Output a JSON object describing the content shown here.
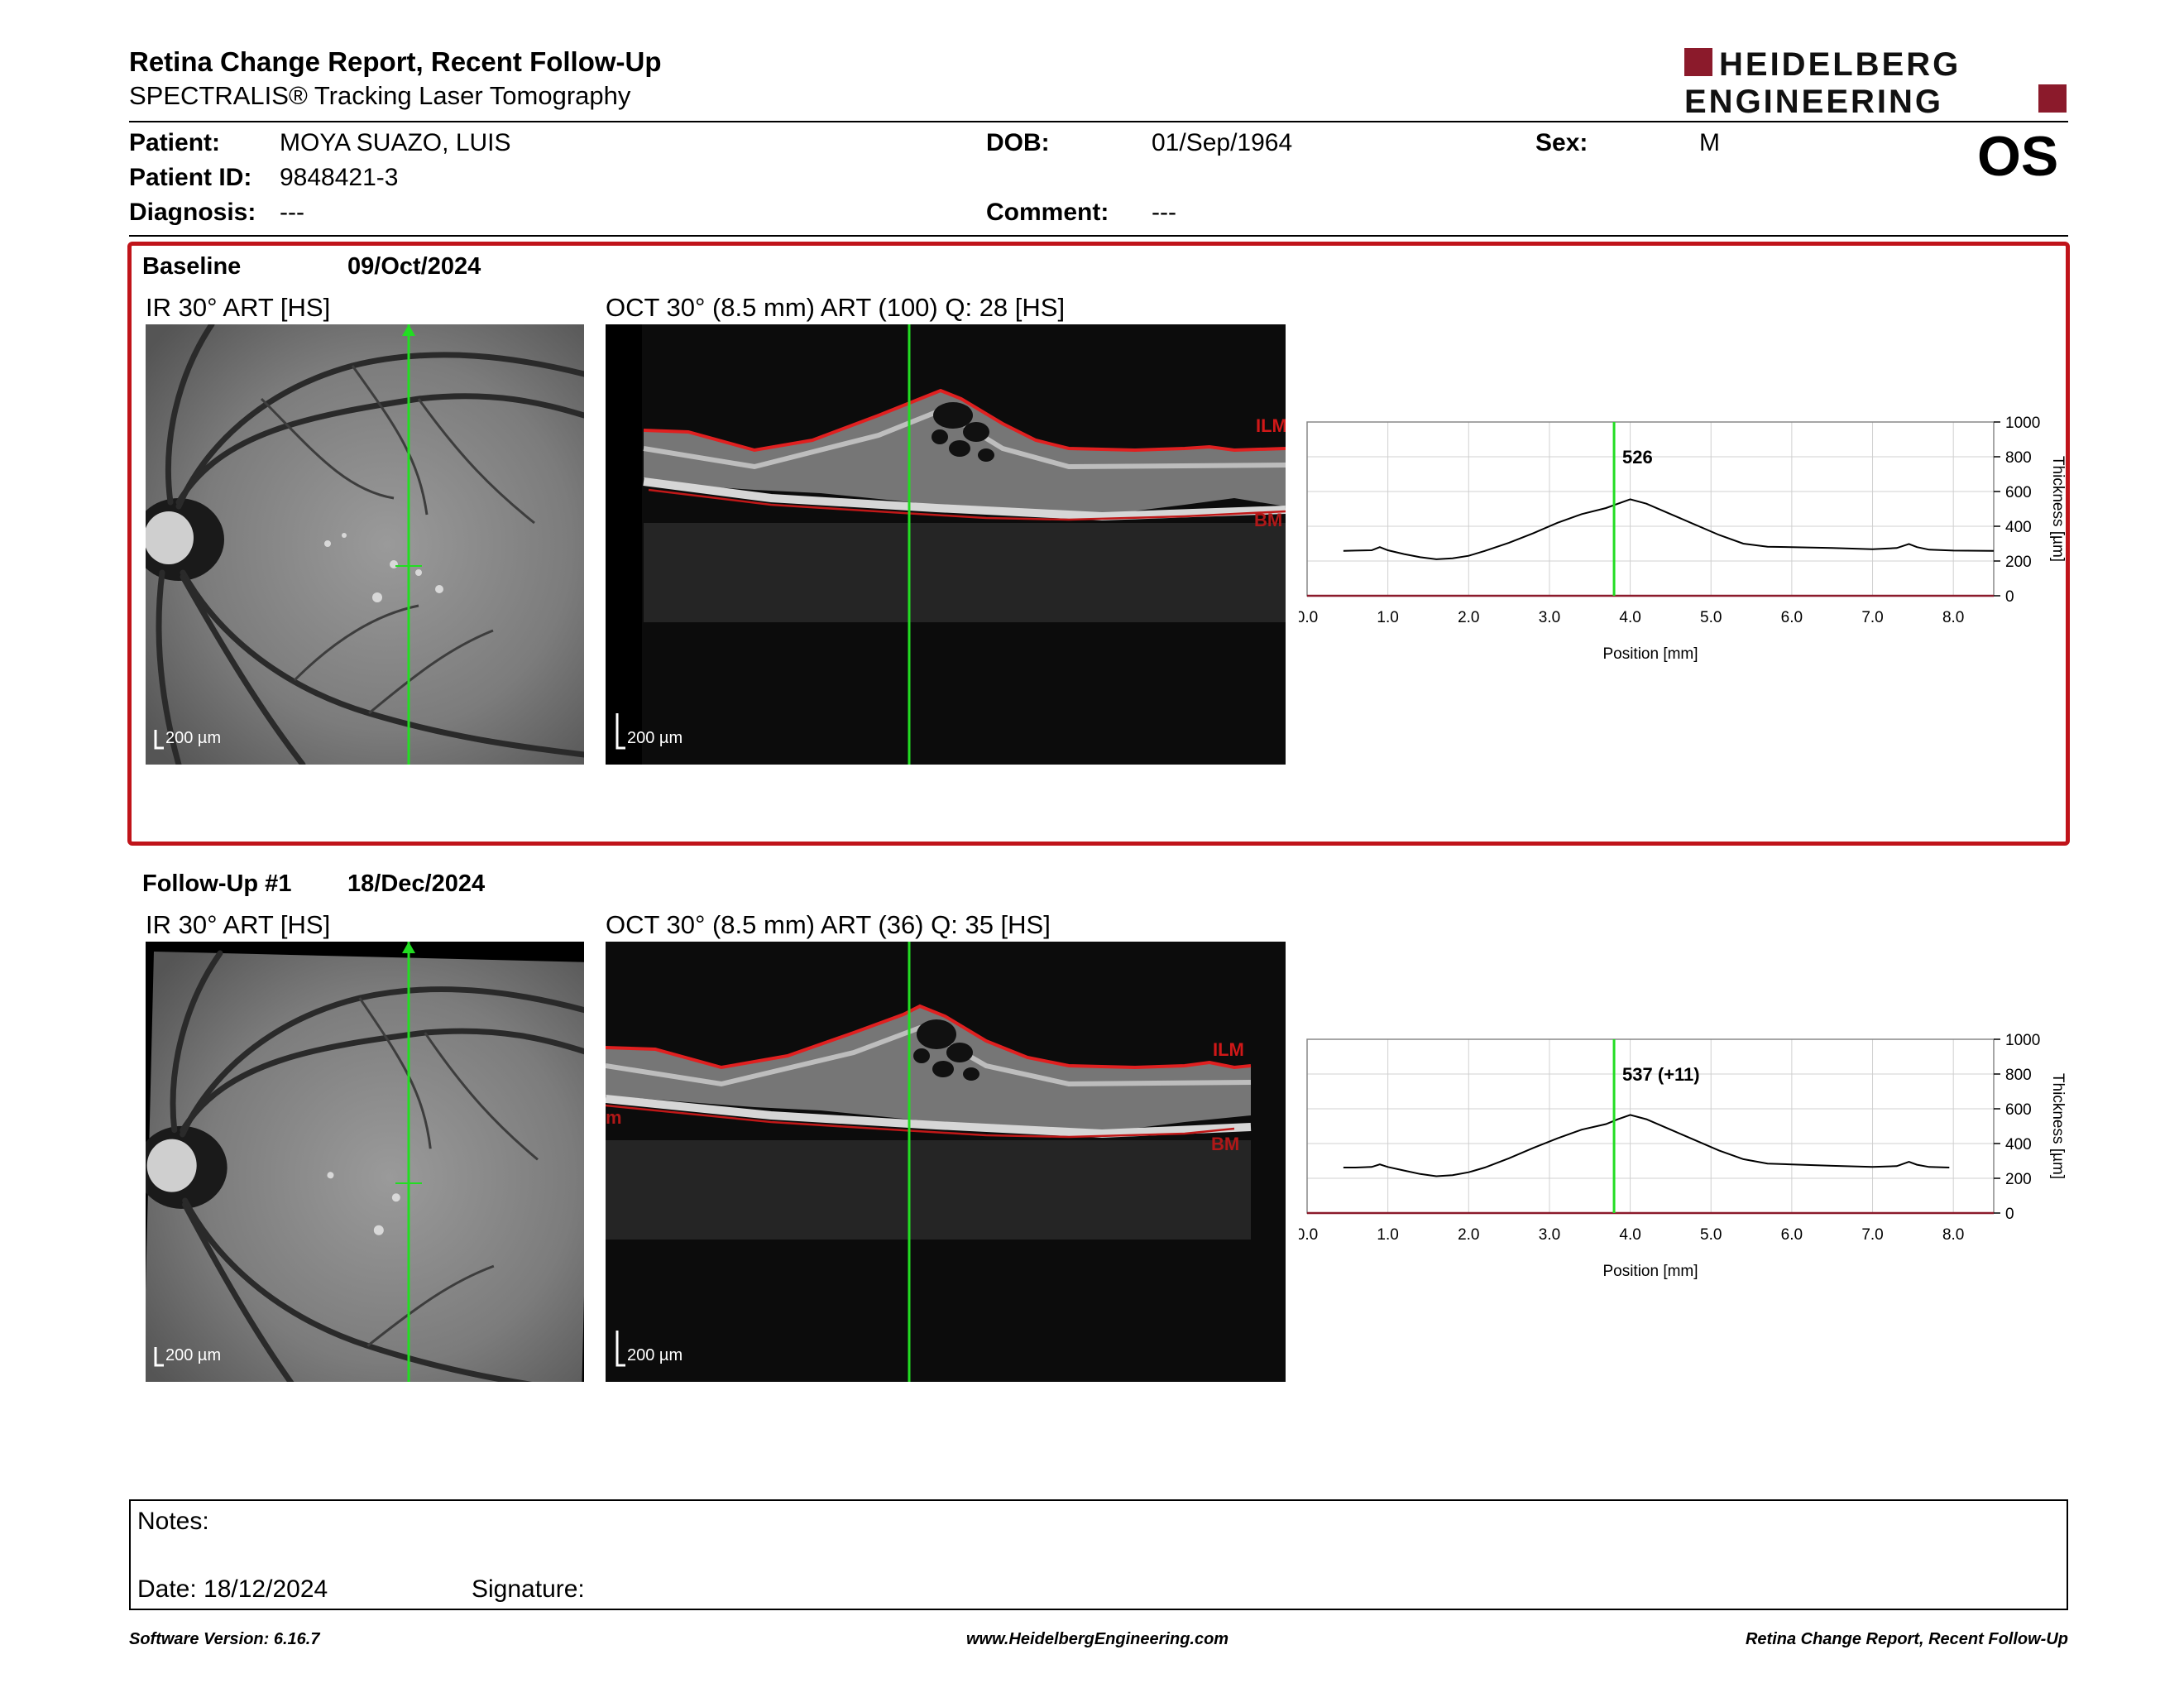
{
  "header": {
    "title": "Retina Change Report, Recent Follow-Up",
    "subtitle": "SPECTRALIS® Tracking Laser Tomography",
    "logo_line1": "HEIDELBERG",
    "logo_line2": "ENGINEERING",
    "eye": "OS"
  },
  "patient": {
    "patient_label": "Patient:",
    "patient_value": "MOYA SUAZO, LUIS",
    "id_label": "Patient ID:",
    "id_value": "9848421-3",
    "diagnosis_label": "Diagnosis:",
    "diagnosis_value": "---",
    "dob_label": "DOB:",
    "dob_value": "01/Sep/1964",
    "comment_label": "Comment:",
    "comment_value": "---",
    "sex_label": "Sex:",
    "sex_value": "M"
  },
  "baseline": {
    "label": "Baseline",
    "date": "09/Oct/2024",
    "ir_caption": "IR 30° ART [HS]",
    "oct_caption": "OCT 30° (8.5 mm) ART (100) Q: 28 [HS]",
    "scale_ir": "200 µm",
    "scale_oct": "200 µm",
    "ilm": "ILM",
    "bm": "BM"
  },
  "followup": {
    "label": "Follow-Up #1",
    "date": "18/Dec/2024",
    "ir_caption": "IR 30° ART [HS]",
    "oct_caption": "OCT 30° (8.5 mm) ART (36) Q: 35 [HS]",
    "scale_ir": "200 µm",
    "scale_oct": "200 µm",
    "ilm": "ILM",
    "bm": "BM",
    "side_mark": "m"
  },
  "chart_data": [
    {
      "type": "line",
      "xlabel": "Position [mm]",
      "ylabel": "Thickness [µm]",
      "xlim": [
        0,
        8.5
      ],
      "ylim": [
        0,
        1000
      ],
      "xticks": [
        "0.0",
        "1.0",
        "2.0",
        "3.0",
        "4.0",
        "5.0",
        "6.0",
        "7.0",
        "8.0"
      ],
      "yticks": [
        "0",
        "200",
        "400",
        "600",
        "800",
        "1000"
      ],
      "marker_x": 3.8,
      "marker_label": "526",
      "grid": true,
      "x": [
        0.45,
        0.6,
        0.8,
        0.9,
        1.0,
        1.2,
        1.4,
        1.6,
        1.8,
        2.0,
        2.2,
        2.5,
        2.8,
        3.1,
        3.4,
        3.7,
        3.85,
        4.0,
        4.2,
        4.5,
        4.8,
        5.1,
        5.4,
        5.7,
        6.0,
        6.5,
        7.0,
        7.3,
        7.45,
        7.55,
        7.7,
        8.0,
        8.5
      ],
      "y": [
        258,
        260,
        262,
        280,
        262,
        240,
        222,
        210,
        215,
        230,
        258,
        305,
        360,
        420,
        470,
        505,
        530,
        555,
        530,
        470,
        410,
        350,
        300,
        282,
        280,
        275,
        268,
        275,
        298,
        280,
        265,
        260,
        258
      ]
    },
    {
      "type": "line",
      "xlabel": "Position [mm]",
      "ylabel": "Thickness [µm]",
      "xlim": [
        0,
        8.5
      ],
      "ylim": [
        0,
        1000
      ],
      "xticks": [
        "0.0",
        "1.0",
        "2.0",
        "3.0",
        "4.0",
        "5.0",
        "6.0",
        "7.0",
        "8.0"
      ],
      "yticks": [
        "0",
        "200",
        "400",
        "600",
        "800",
        "1000"
      ],
      "marker_x": 3.8,
      "marker_label": "537 (+11)",
      "grid": true,
      "x": [
        0.45,
        0.6,
        0.8,
        0.9,
        1.0,
        1.2,
        1.4,
        1.6,
        1.8,
        2.0,
        2.2,
        2.5,
        2.8,
        3.1,
        3.4,
        3.7,
        3.85,
        4.0,
        4.2,
        4.5,
        4.8,
        5.1,
        5.4,
        5.7,
        6.0,
        6.5,
        7.0,
        7.3,
        7.45,
        7.55,
        7.7,
        7.95
      ],
      "y": [
        262,
        262,
        265,
        280,
        265,
        245,
        225,
        212,
        218,
        235,
        262,
        315,
        375,
        430,
        480,
        512,
        540,
        565,
        540,
        480,
        420,
        360,
        310,
        285,
        280,
        272,
        265,
        270,
        295,
        278,
        265,
        262
      ]
    }
  ],
  "notes": {
    "notes_label": "Notes:",
    "date_label": "Date: 18/12/2024",
    "signature_label": "Signature:"
  },
  "footer": {
    "left": "Software Version: 6.16.7",
    "center": "www.HeidelbergEngineering.com",
    "right": "Retina Change Report, Recent Follow-Up"
  },
  "colors": {
    "accent_red": "#c0141a",
    "scan_line": "#22dd22",
    "layer_red": "#e02020"
  }
}
